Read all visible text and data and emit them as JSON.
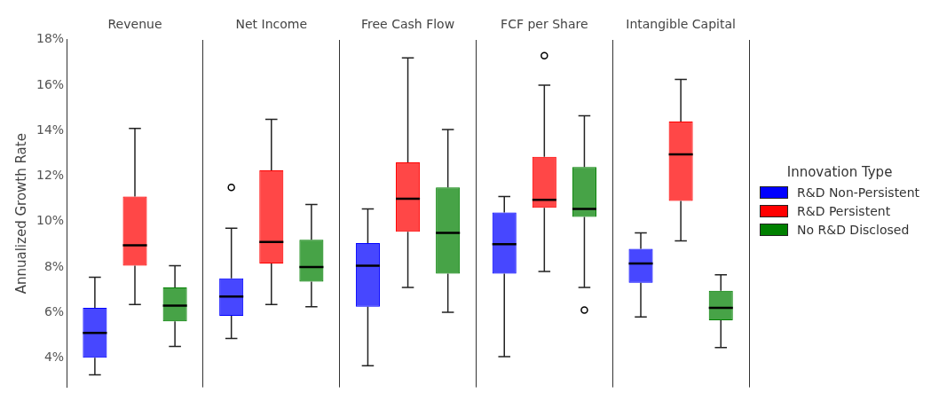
{
  "chart_data": {
    "type": "box",
    "categories": [
      "Revenue",
      "Net Income",
      "Free Cash Flow",
      "FCF per Share",
      "Intangible Capital"
    ],
    "ylabel": "Annualized Growth Rate",
    "legend_title": "Innovation Type",
    "legend": "right",
    "grid": "x",
    "ylim": [
      2.7,
      18
    ],
    "yticks": [
      {
        "value": 4,
        "label": "4%"
      },
      {
        "value": 6,
        "label": "6%"
      },
      {
        "value": 8,
        "label": "8%"
      },
      {
        "value": 10,
        "label": "10%"
      },
      {
        "value": 12,
        "label": "12%"
      },
      {
        "value": 14,
        "label": "14%"
      },
      {
        "value": 16,
        "label": "16%"
      },
      {
        "value": 18,
        "label": "18%"
      }
    ],
    "series": [
      {
        "name": "R&D Non-Persistent",
        "color": "#0000ff",
        "boxes": [
          {
            "low": 3.25,
            "q1": 4.0,
            "median": 5.1,
            "q3": 6.2,
            "high": 7.55
          },
          {
            "low": 4.85,
            "q1": 5.85,
            "median": 6.7,
            "q3": 7.5,
            "high": 9.7,
            "outliers": [
              11.5
            ]
          },
          {
            "low": 3.65,
            "q1": 6.25,
            "median": 8.05,
            "q3": 9.05,
            "high": 10.55
          },
          {
            "low": 4.05,
            "q1": 7.7,
            "median": 9.0,
            "q3": 10.4,
            "high": 11.1
          },
          {
            "low": 5.8,
            "q1": 7.3,
            "median": 8.15,
            "q3": 8.8,
            "high": 9.5
          }
        ]
      },
      {
        "name": "R&D Persistent",
        "color": "#ff0000",
        "boxes": [
          {
            "low": 6.35,
            "q1": 8.05,
            "median": 8.95,
            "q3": 11.1,
            "high": 14.1
          },
          {
            "low": 6.35,
            "q1": 8.15,
            "median": 9.1,
            "q3": 12.25,
            "high": 14.5
          },
          {
            "low": 7.1,
            "q1": 9.55,
            "median": 11.0,
            "q3": 12.6,
            "high": 17.2
          },
          {
            "low": 7.8,
            "q1": 10.6,
            "median": 10.95,
            "q3": 12.85,
            "high": 16.0,
            "outliers": [
              17.3
            ]
          },
          {
            "low": 9.15,
            "q1": 10.9,
            "median": 12.95,
            "q3": 14.4,
            "high": 16.25
          }
        ]
      },
      {
        "name": "No R&D Disclosed",
        "color": "#008000",
        "boxes": [
          {
            "low": 4.5,
            "q1": 5.6,
            "median": 6.3,
            "q3": 7.1,
            "high": 8.05
          },
          {
            "low": 6.25,
            "q1": 7.35,
            "median": 8.0,
            "q3": 9.2,
            "high": 10.75
          },
          {
            "low": 6.0,
            "q1": 7.7,
            "median": 9.5,
            "q3": 11.5,
            "high": 14.05
          },
          {
            "low": 7.1,
            "q1": 10.2,
            "median": 10.55,
            "q3": 12.4,
            "high": 14.65,
            "outliers": [
              6.1
            ]
          },
          {
            "low": 4.45,
            "q1": 5.65,
            "median": 6.2,
            "q3": 6.95,
            "high": 7.65
          }
        ]
      }
    ]
  }
}
